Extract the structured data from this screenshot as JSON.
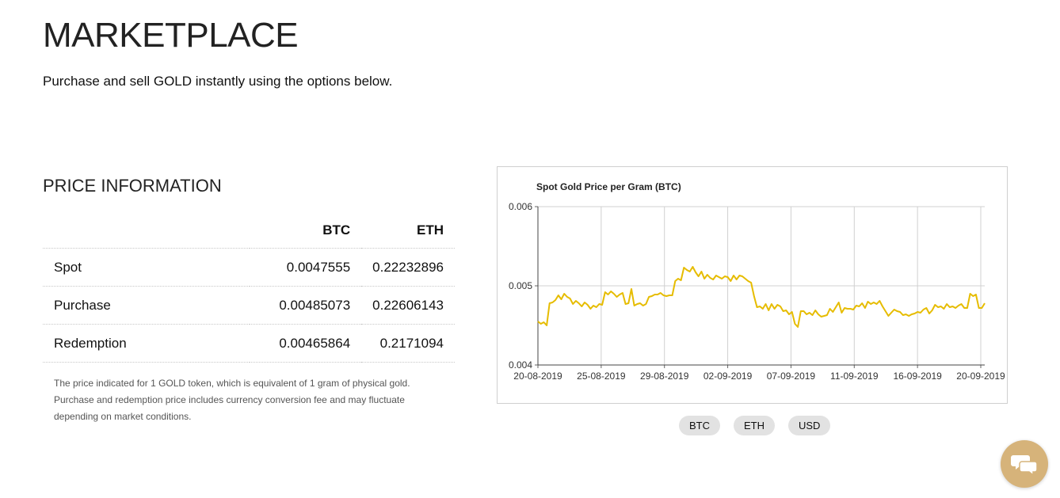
{
  "header": {
    "title": "MARKETPLACE",
    "subtitle": "Purchase and sell GOLD instantly using the options below."
  },
  "price_info": {
    "title": "PRICE INFORMATION",
    "columns": [
      "BTC",
      "ETH"
    ],
    "rows": [
      {
        "label": "Spot",
        "btc": "0.0047555",
        "eth": "0.22232896"
      },
      {
        "label": "Purchase",
        "btc": "0.00485073",
        "eth": "0.22606143"
      },
      {
        "label": "Redemption",
        "btc": "0.00465864",
        "eth": "0.2171094"
      }
    ],
    "footnote": "The price indicated for 1 GOLD token, which is equivalent of 1 gram of physical gold. Purchase and redemption price includes currency conversion fee and may fluctuate depending on market conditions."
  },
  "chart_data": {
    "type": "line",
    "title": "Spot Gold Price per Gram (BTC)",
    "xlabel": "",
    "ylabel": "",
    "ylim": [
      0.004,
      0.006
    ],
    "yticks": [
      "0.004",
      "0.005",
      "0.006"
    ],
    "xticks": [
      "20-08-2019",
      "25-08-2019",
      "29-08-2019",
      "02-09-2019",
      "07-09-2019",
      "11-09-2019",
      "16-09-2019",
      "20-09-2019"
    ],
    "grid": true,
    "line_color": "#e6bc00",
    "series": [
      {
        "values": [
          0.00455,
          0.00452,
          0.00454,
          0.0045,
          0.00478,
          0.00479,
          0.00482,
          0.00488,
          0.00483,
          0.0049,
          0.00486,
          0.00484,
          0.00477,
          0.00481,
          0.00478,
          0.00474,
          0.00479,
          0.00476,
          0.00471,
          0.00475,
          0.00473,
          0.00477,
          0.00476,
          0.00492,
          0.00489,
          0.00493,
          0.0049,
          0.00486,
          0.00489,
          0.00491,
          0.00477,
          0.00478,
          0.00496,
          0.00475,
          0.00477,
          0.00478,
          0.00475,
          0.00477,
          0.00486,
          0.00487,
          0.00489,
          0.00489,
          0.00491,
          0.00488,
          0.00487,
          0.00488,
          0.00488,
          0.00506,
          0.00509,
          0.00507,
          0.00523,
          0.0052,
          0.00518,
          0.00524,
          0.00517,
          0.00512,
          0.00518,
          0.00509,
          0.00514,
          0.0051,
          0.00508,
          0.00513,
          0.00511,
          0.00509,
          0.00512,
          0.00511,
          0.00506,
          0.00513,
          0.00508,
          0.00513,
          0.00512,
          0.00509,
          0.00506,
          0.00504,
          0.00487,
          0.00473,
          0.00474,
          0.00471,
          0.00477,
          0.00469,
          0.00477,
          0.00471,
          0.00476,
          0.00474,
          0.00468,
          0.00469,
          0.00464,
          0.00467,
          0.00452,
          0.00448,
          0.00468,
          0.00468,
          0.00464,
          0.00466,
          0.00463,
          0.00469,
          0.00464,
          0.00461,
          0.00462,
          0.00463,
          0.00471,
          0.00467,
          0.00473,
          0.00479,
          0.00466,
          0.00472,
          0.00471,
          0.00471,
          0.0047,
          0.00475,
          0.00474,
          0.00478,
          0.00472,
          0.0048,
          0.00477,
          0.00479,
          0.00477,
          0.00481,
          0.00474,
          0.00468,
          0.00462,
          0.00466,
          0.0047,
          0.00468,
          0.00467,
          0.00463,
          0.00464,
          0.00462,
          0.00464,
          0.00465,
          0.00467,
          0.00466,
          0.0047,
          0.00472,
          0.00465,
          0.00469,
          0.00476,
          0.00473,
          0.00474,
          0.00471,
          0.00477,
          0.00473,
          0.00474,
          0.00472,
          0.00475,
          0.00477,
          0.00472,
          0.00472,
          0.0049,
          0.00487,
          0.00489,
          0.00472,
          0.00472,
          0.00478
        ]
      }
    ]
  },
  "currency_tabs": [
    "BTC",
    "ETH",
    "USD"
  ],
  "chat": {
    "icon": "chat-bubbles-icon",
    "color": "#d6b37a"
  }
}
